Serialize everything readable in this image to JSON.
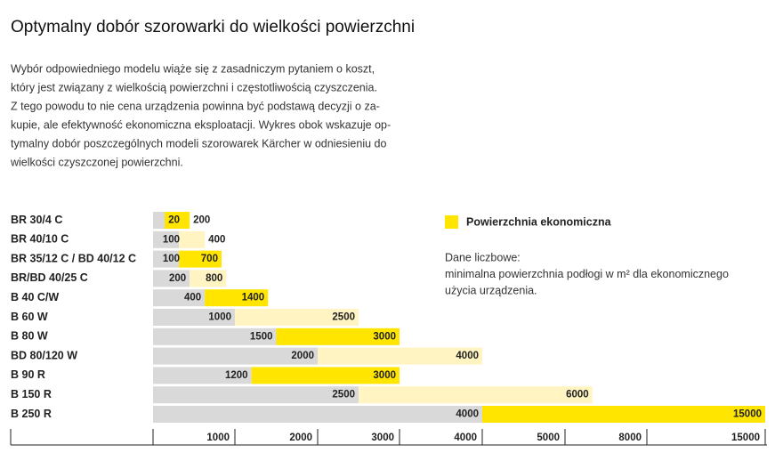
{
  "chart_data": {
    "type": "range-bar",
    "title": "Optymalny dobór szorowarki do wielkości powierzchni",
    "intro": [
      "Wybór odpowiedniego modelu wiąże się z zasadniczym pytaniem o koszt,",
      "który jest związany z wielkością powierzchni i częstotliwością czyszczenia.",
      "Z tego powodu to nie cena urządzenia powinna być podstawą decyzji o za-",
      "kupie, ale efektywność ekonomiczna eksploatacji. Wykres obok wskazuje op-",
      "tymalny dobór poszczególnych modeli szorowarek Kärcher w odniesieniu do",
      "wielkości czyszczonej powierzchni."
    ],
    "categories": [
      "BR 30/4 C",
      "BR 40/10 C",
      "BR 35/12 C / BD 40/12 C",
      "BR/BD 40/25 C",
      "B 40 C/W",
      "B 60 W",
      "B 80 W",
      "BD 80/120 W",
      "B 90 R",
      "B 150 R",
      "B 250 R"
    ],
    "min_values": [
      20,
      100,
      100,
      200,
      400,
      1000,
      1500,
      2000,
      1200,
      2500,
      4000
    ],
    "max_values": [
      200,
      400,
      700,
      800,
      1400,
      2500,
      3000,
      4000,
      3000,
      6000,
      15000
    ],
    "colors": [
      "#ffe500",
      "#fff4c2",
      "#ffe500",
      "#fff4c2",
      "#ffe500",
      "#fff4c2",
      "#ffe500",
      "#fff4c2",
      "#ffe500",
      "#fff4c2",
      "#ffe500"
    ],
    "base_color": "#d9d9d9",
    "legend": {
      "label": "Powierzchnia ekonomiczna",
      "color": "#ffe500"
    },
    "note": [
      "Dane liczbowe:",
      "minimalna powierzchnia podłogi w m² dla ekonomicznego",
      "użycia urządzenia."
    ],
    "xlim": [
      0,
      15000
    ],
    "xticks": [
      1000,
      2000,
      3000,
      4000,
      5000,
      8000,
      15000
    ]
  }
}
